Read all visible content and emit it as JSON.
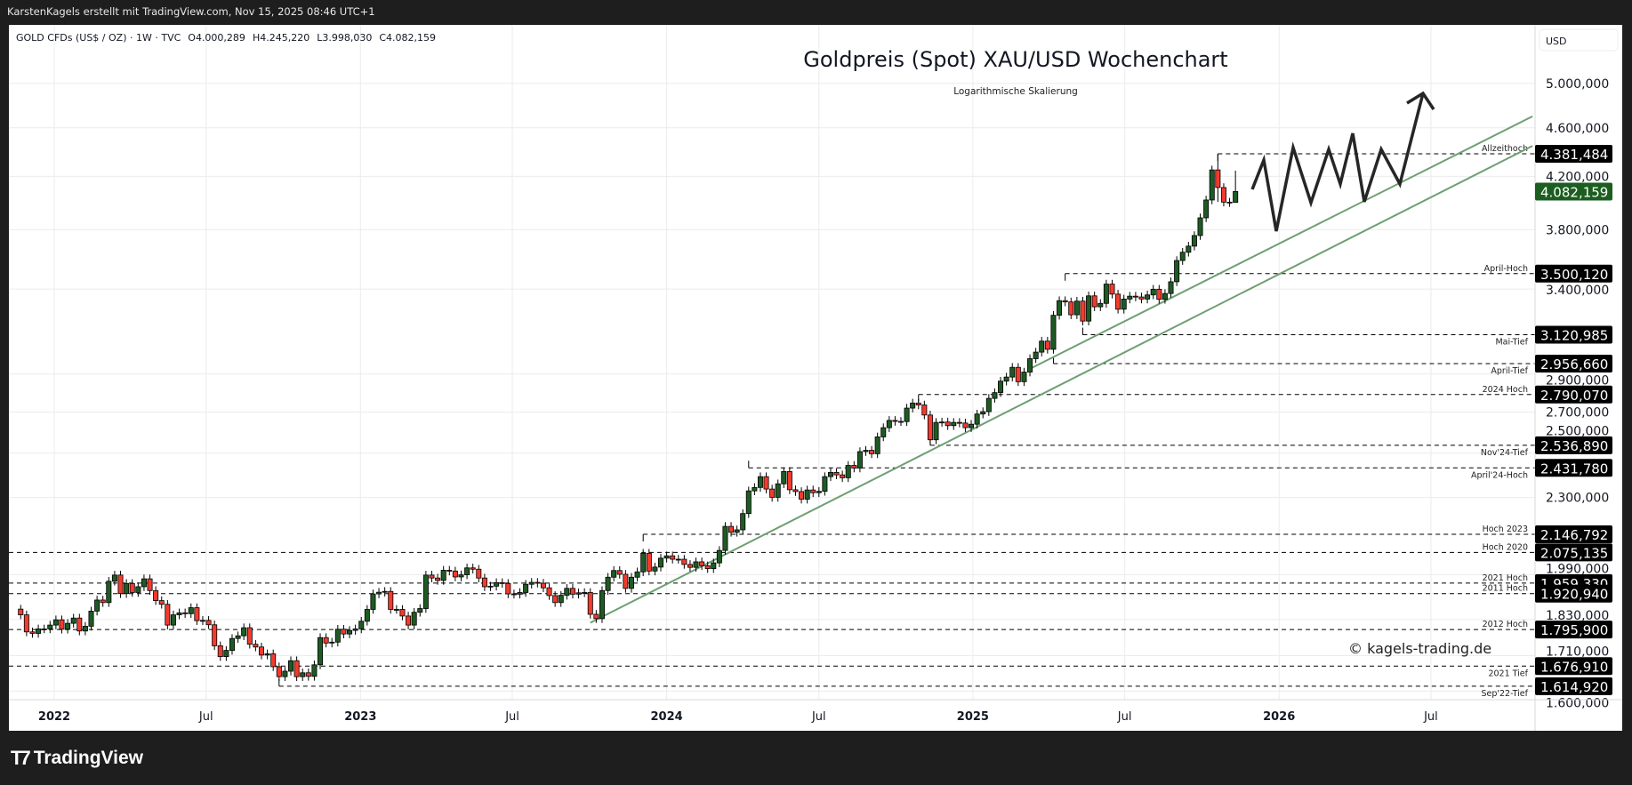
{
  "header": {
    "attribution": "KarstenKagels erstellt mit TradingView.com, Nov 15, 2025 08:46 UTC+1"
  },
  "legend": {
    "symbol": "GOLD CFDs (US$ / OZ) · 1W · TVC",
    "open": "O4.000,289",
    "high": "H4.245,220",
    "low": "L3.998,030",
    "close": "C4.082,159"
  },
  "brand": {
    "logo_text": "TradingView"
  },
  "chart_data": {
    "type": "candlestick",
    "title": "Goldpreis (Spot) XAU/USD Wochenchart",
    "subtitle": "Logarithmische Skalierung",
    "watermark": "© kagels-trading.de",
    "currency": "USD",
    "scale": "log",
    "interval": "1W",
    "grid": true,
    "colors": {
      "up": "#1e5b24",
      "down": "#f23b2e",
      "trendline": "#6e9f72",
      "current_price": "#1b5e20",
      "level_badge": "#000000",
      "projection": "#262626"
    },
    "x_axis_labels": [
      {
        "text": "2022",
        "date": "2022-01-01",
        "year": true
      },
      {
        "text": "Jul",
        "date": "2022-07-01",
        "year": false
      },
      {
        "text": "2023",
        "date": "2023-01-01",
        "year": true
      },
      {
        "text": "Jul",
        "date": "2023-07-01",
        "year": false
      },
      {
        "text": "2024",
        "date": "2024-01-01",
        "year": true
      },
      {
        "text": "Jul",
        "date": "2024-07-01",
        "year": false
      },
      {
        "text": "2025",
        "date": "2025-01-01",
        "year": true
      },
      {
        "text": "Jul",
        "date": "2025-07-01",
        "year": false
      },
      {
        "text": "2026",
        "date": "2026-01-01",
        "year": true
      },
      {
        "text": "Jul",
        "date": "2026-07-01",
        "year": false
      }
    ],
    "y_axis_ticks": [
      {
        "text": "5.000,000",
        "value": 5000
      },
      {
        "text": "4.600,000",
        "value": 4600
      },
      {
        "text": "4.200,000",
        "value": 4200
      },
      {
        "text": "3.800,000",
        "value": 3800
      },
      {
        "text": "3.400,000",
        "value": 3400
      },
      {
        "text": "2.900,000",
        "value": 2900
      },
      {
        "text": "2.700,000",
        "value": 2700
      },
      {
        "text": "2.500,000",
        "value": 2500
      },
      {
        "text": "2.300,000",
        "value": 2300
      },
      {
        "text": "1.990,000",
        "value": 1990
      },
      {
        "text": "1.830,000",
        "value": 1830
      },
      {
        "text": "1.710,000",
        "value": 1710
      },
      {
        "text": "1.600,000",
        "value": 1600
      }
    ],
    "weekly_closes": [
      1866,
      1846,
      1788,
      1783,
      1798,
      1798,
      1811,
      1829,
      1797,
      1817,
      1835,
      1791,
      1807,
      1859,
      1898,
      1889,
      1966,
      1989,
      1921,
      1958,
      1925,
      1946,
      1975,
      1932,
      1896,
      1883,
      1811,
      1846,
      1853,
      1850,
      1871,
      1826,
      1827,
      1812,
      1742,
      1707,
      1727,
      1766,
      1775,
      1802,
      1747,
      1738,
      1712,
      1716,
      1675,
      1644,
      1661,
      1694,
      1644,
      1656,
      1645,
      1681,
      1769,
      1751,
      1754,
      1797,
      1781,
      1793,
      1798,
      1824,
      1865,
      1920,
      1926,
      1929,
      1865,
      1865,
      1842,
      1811,
      1855,
      1868,
      1989,
      1978,
      1969,
      2007,
      2004,
      1982,
      1990,
      2016,
      2011,
      1978,
      1946,
      1948,
      1961,
      1958,
      1920,
      1919,
      1925,
      1955,
      1962,
      1959,
      1942,
      1914,
      1889,
      1915,
      1940,
      1919,
      1924,
      1925,
      1848,
      1833,
      1932,
      1981,
      2006,
      1992,
      1940,
      1981,
      2001,
      2072,
      2004,
      2019,
      2053,
      2062,
      2049,
      2049,
      2029,
      2018,
      2039,
      2024,
      2013,
      2035,
      2083,
      2179,
      2155,
      2165,
      2232,
      2329,
      2344,
      2392,
      2337,
      2301,
      2360,
      2415,
      2334,
      2326,
      2293,
      2333,
      2321,
      2327,
      2392,
      2411,
      2400,
      2387,
      2443,
      2431,
      2507,
      2513,
      2497,
      2577,
      2622,
      2658,
      2653,
      2652,
      2720,
      2746,
      2736,
      2685,
      2563,
      2648,
      2650,
      2632,
      2648,
      2645,
      2622,
      2639,
      2690,
      2702,
      2770,
      2800,
      2861,
      2883,
      2936,
      2858,
      2910,
      2984,
      3021,
      3084,
      3037,
      3237,
      3327,
      3319,
      3240,
      3324,
      3202,
      3357,
      3289,
      3310,
      3432,
      3368,
      3274,
      3337,
      3355,
      3350,
      3337,
      3363,
      3399,
      3335,
      3372,
      3447,
      3587,
      3643,
      3685,
      3759,
      3886,
      4018,
      4251,
      4113,
      4002,
      3999,
      4082.159
    ],
    "last_candle": {
      "open": 4000.289,
      "high": 4245.22,
      "low": 3998.03,
      "close": 4082.159
    },
    "all_time_high": 4381.484,
    "levels": [
      {
        "label": "Allzeithoch",
        "price": 4381.484,
        "price_text": "4.381,484",
        "from": "2025-10-20",
        "label_side": "above"
      },
      {
        "label": "April-Hoch",
        "price": 3500.12,
        "price_text": "3.500,120",
        "from": "2025-04-21",
        "label_side": "above"
      },
      {
        "label": "Mai-Tief",
        "price": 3120.985,
        "price_text": "3.120,985",
        "from": "2025-05-12",
        "label_side": "below"
      },
      {
        "label": "April-Tief",
        "price": 2956.66,
        "price_text": "2.956,660",
        "from": "2025-04-07",
        "label_side": "below"
      },
      {
        "label": "2024 Hoch",
        "price": 2790.07,
        "price_text": "2.790,070",
        "from": "2024-10-28",
        "label_side": "above"
      },
      {
        "label": "Nov'24-Tief",
        "price": 2536.89,
        "price_text": "2.536,890",
        "from": "2024-11-11",
        "label_side": "below"
      },
      {
        "label": "April'24-Hoch",
        "price": 2431.78,
        "price_text": "2.431,780",
        "from": "2024-04-08",
        "label_side": "below"
      },
      {
        "label": "Hoch 2023",
        "price": 2146.792,
        "price_text": "2.146,792",
        "from": "2023-12-04",
        "label_side": "above"
      },
      {
        "label": "Hoch 2020",
        "price": 2075.135,
        "price_text": "2.075,135",
        "from": null,
        "label_side": "above"
      },
      {
        "label": "2021 Hoch",
        "price": 1959.33,
        "price_text": "1.959,330",
        "from": null,
        "label_side": "above"
      },
      {
        "label": "2011 Hoch",
        "price": 1920.94,
        "price_text": "1.920,940",
        "from": null,
        "label_side": "above"
      },
      {
        "label": "2012 Hoch",
        "price": 1795.9,
        "price_text": "1.795,900",
        "from": null,
        "label_side": "above"
      },
      {
        "label": "2021 Tief",
        "price": 1676.91,
        "price_text": "1.676,910",
        "from": null,
        "label_side": "below"
      },
      {
        "label": "Sep'22-Tief",
        "price": 1614.92,
        "price_text": "1.614,920",
        "from": "2022-09-26",
        "label_side": "below"
      }
    ],
    "current_price": {
      "price": 4082.159,
      "price_text": "4.082,159"
    },
    "trendlines": [
      {
        "from": {
          "date": "2023-10-02",
          "price": 1819
        },
        "to": {
          "date": "2026-10-30",
          "price": 4447
        }
      },
      {
        "from": {
          "date": "2025-03-10",
          "price": 2928
        },
        "to": {
          "date": "2026-10-30",
          "price": 4700
        }
      }
    ],
    "projection": "zigzag sideways below all-time high, then breakout arrow upward"
  }
}
